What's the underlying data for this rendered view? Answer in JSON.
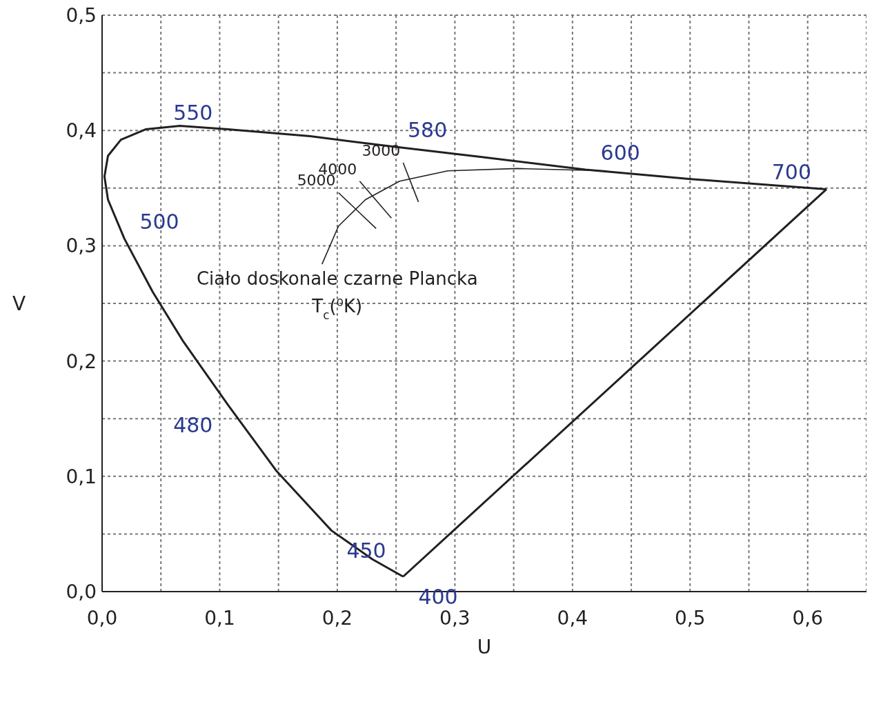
{
  "chart_data": {
    "type": "line",
    "xlabel": "U",
    "ylabel": "V",
    "xlim": [
      0,
      0.65
    ],
    "ylim": [
      0,
      0.5
    ],
    "xticks": [
      {
        "value": 0,
        "label": "0,0"
      },
      {
        "value": 0.05,
        "label": null
      },
      {
        "value": 0.1,
        "label": "0,1"
      },
      {
        "value": 0.15,
        "label": null
      },
      {
        "value": 0.2,
        "label": "0,2"
      },
      {
        "value": 0.25,
        "label": null
      },
      {
        "value": 0.3,
        "label": "0,3"
      },
      {
        "value": 0.35,
        "label": null
      },
      {
        "value": 0.4,
        "label": "0,4"
      },
      {
        "value": 0.45,
        "label": null
      },
      {
        "value": 0.5,
        "label": "0,5"
      },
      {
        "value": 0.55,
        "label": null
      },
      {
        "value": 0.6,
        "label": "0,6"
      }
    ],
    "yticks": [
      {
        "value": 0,
        "label": "0,0"
      },
      {
        "value": 0.05,
        "label": null
      },
      {
        "value": 0.1,
        "label": "0,1"
      },
      {
        "value": 0.15,
        "label": null
      },
      {
        "value": 0.2,
        "label": "0,2"
      },
      {
        "value": 0.25,
        "label": null
      },
      {
        "value": 0.3,
        "label": "0,3"
      },
      {
        "value": 0.35,
        "label": null
      },
      {
        "value": 0.4,
        "label": "0,4"
      },
      {
        "value": 0.45,
        "label": null
      },
      {
        "value": 0.5,
        "label": "0,5"
      }
    ],
    "grid": true,
    "marker": "none",
    "line_style": "solid",
    "series": [
      {
        "color": "#231f20",
        "x": [
          0.256,
          0.23,
          0.195,
          0.148,
          0.107,
          0.069,
          0.043,
          0.019,
          0.005,
          0.002,
          0.005,
          0.016,
          0.037,
          0.066,
          0.107,
          0.177,
          0.247,
          0.323,
          0.411,
          0.499,
          0.616
        ],
        "values": [
          0.013,
          0.028,
          0.053,
          0.105,
          0.162,
          0.217,
          0.26,
          0.306,
          0.34,
          0.36,
          0.378,
          0.392,
          0.401,
          0.404,
          0.401,
          0.395,
          0.386,
          0.377,
          0.366,
          0.358,
          0.349
        ]
      },
      {
        "color": "#231f20",
        "x": [
          0.256,
          0.616
        ],
        "values": [
          0.013,
          0.349
        ]
      },
      {
        "name": "Ciało doskonale czarne Plancka",
        "color": "#231f20",
        "x": [
          0.187,
          0.201,
          0.224,
          0.253,
          0.294,
          0.353,
          0.429
        ],
        "values": [
          0.284,
          0.317,
          0.34,
          0.356,
          0.365,
          0.367,
          0.365
        ]
      },
      {
        "name": "3000",
        "color": "#231f20",
        "x": [
          0.256,
          0.269
        ],
        "values": [
          0.372,
          0.338
        ]
      },
      {
        "name": "4000",
        "color": "#231f20",
        "x": [
          0.219,
          0.246
        ],
        "values": [
          0.356,
          0.324
        ]
      },
      {
        "name": "5000",
        "color": "#231f20",
        "x": [
          0.201,
          0.233
        ],
        "values": [
          0.346,
          0.315
        ]
      }
    ],
    "annotations": [
      {
        "text": "550",
        "x": 0.107,
        "y": 0.401
      },
      {
        "text": "580",
        "x": 0.247,
        "y": 0.386
      },
      {
        "text": "600",
        "x": 0.411,
        "y": 0.366
      },
      {
        "text": "700",
        "x": 0.616,
        "y": 0.349
      },
      {
        "text": "500",
        "x": 0.019,
        "y": 0.306
      },
      {
        "text": "480",
        "x": 0.107,
        "y": 0.162
      },
      {
        "text": "450",
        "x": 0.195,
        "y": 0.053
      },
      {
        "text": "400",
        "x": 0.256,
        "y": 0.013
      },
      "T$_{c}$(⁰K)"
    ]
  }
}
